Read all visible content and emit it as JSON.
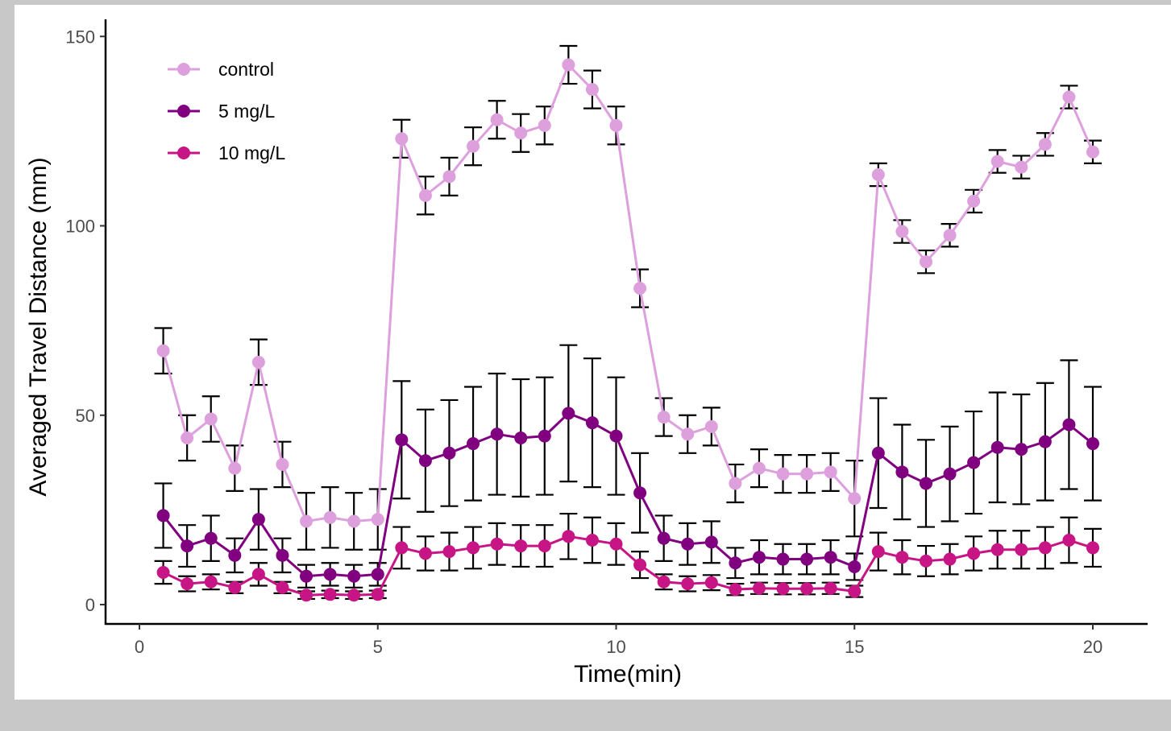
{
  "chart_data": {
    "type": "line",
    "title": "",
    "xlabel": "Time(min)",
    "ylabel": "Averaged Travel Distance (mm)",
    "xlim": [
      -0.7,
      21.3
    ],
    "ylim": [
      -5,
      155
    ],
    "xticks": [
      0,
      5,
      10,
      15,
      20
    ],
    "yticks": [
      0,
      50,
      100,
      150
    ],
    "grid": false,
    "legend_position": "top-left",
    "x": [
      0.5,
      1,
      1.5,
      2,
      2.5,
      3,
      3.5,
      4,
      4.5,
      5,
      5.5,
      6,
      6.5,
      7,
      7.5,
      8,
      8.5,
      9,
      9.5,
      10,
      10.5,
      11,
      11.5,
      12,
      12.5,
      13,
      13.5,
      14,
      14.5,
      15,
      15.5,
      16,
      16.5,
      17,
      17.5,
      18,
      18.5,
      19,
      19.5,
      20
    ],
    "series": [
      {
        "name": "control",
        "color": "#dda0dd",
        "values": [
          67,
          44,
          49,
          36,
          64,
          37,
          22,
          23,
          22,
          22.5,
          123,
          108,
          113,
          121,
          128,
          124.5,
          126.5,
          142.5,
          136,
          126.5,
          83.5,
          49.5,
          45,
          47,
          32,
          36,
          34.5,
          34.5,
          35,
          28,
          113.5,
          98.5,
          90.5,
          97.5,
          106.5,
          117,
          115.5,
          121.5,
          134,
          119.5
        ],
        "errors": [
          6,
          6,
          6,
          6,
          6,
          6,
          7.5,
          8,
          7.5,
          8,
          5,
          5,
          5,
          5,
          5,
          5,
          5,
          5,
          5,
          5,
          5,
          5,
          5,
          5,
          5,
          5,
          5,
          5,
          5,
          10,
          3,
          3,
          3,
          3,
          3,
          3,
          3,
          3,
          3,
          3
        ]
      },
      {
        "name": "5 mg/L",
        "color": "#800080",
        "values": [
          23.5,
          15.5,
          17.5,
          13,
          22.5,
          13,
          7.5,
          8,
          7.5,
          8,
          43.5,
          38,
          40,
          42.5,
          45,
          44,
          44.5,
          50.5,
          48,
          44.5,
          29.5,
          17.5,
          16,
          16.5,
          11,
          12.5,
          12,
          12,
          12.5,
          10,
          40,
          35,
          32,
          34.5,
          37.5,
          41.5,
          41,
          43,
          47.5,
          42.5
        ],
        "errors": [
          8.5,
          5.5,
          6,
          4.5,
          8,
          4.5,
          3,
          3,
          3,
          3,
          15.5,
          13.5,
          14,
          15,
          16,
          15.5,
          15.5,
          18,
          17,
          15.5,
          10.5,
          6,
          5.5,
          5.5,
          4,
          4.5,
          4,
          4,
          4.5,
          3.5,
          14.5,
          12.5,
          11.5,
          12.5,
          13.5,
          14.5,
          14.5,
          15.5,
          17,
          15
        ]
      },
      {
        "name": "10 mg/L",
        "color": "#c71585",
        "values": [
          8.5,
          5.5,
          6,
          4.5,
          8,
          4.5,
          2.5,
          2.7,
          2.5,
          2.7,
          15,
          13.5,
          14,
          15,
          16,
          15.5,
          15.5,
          18,
          17,
          16,
          10.5,
          6,
          5.5,
          5.8,
          4,
          4.3,
          4.2,
          4.2,
          4.3,
          3.5,
          14,
          12.5,
          11.5,
          12,
          13.5,
          14.5,
          14.5,
          15,
          17,
          15
        ],
        "errors": [
          3,
          2,
          2,
          1.5,
          3,
          1.5,
          1,
          1,
          1,
          1,
          5.5,
          4.5,
          5,
          5.5,
          5.5,
          5.5,
          5.5,
          6,
          6,
          5.5,
          3.5,
          2,
          2,
          2,
          1.5,
          1.5,
          1.5,
          1.5,
          1.5,
          1.5,
          5,
          4.5,
          4,
          4,
          4.5,
          5,
          5,
          5.5,
          6,
          5
        ]
      }
    ]
  }
}
